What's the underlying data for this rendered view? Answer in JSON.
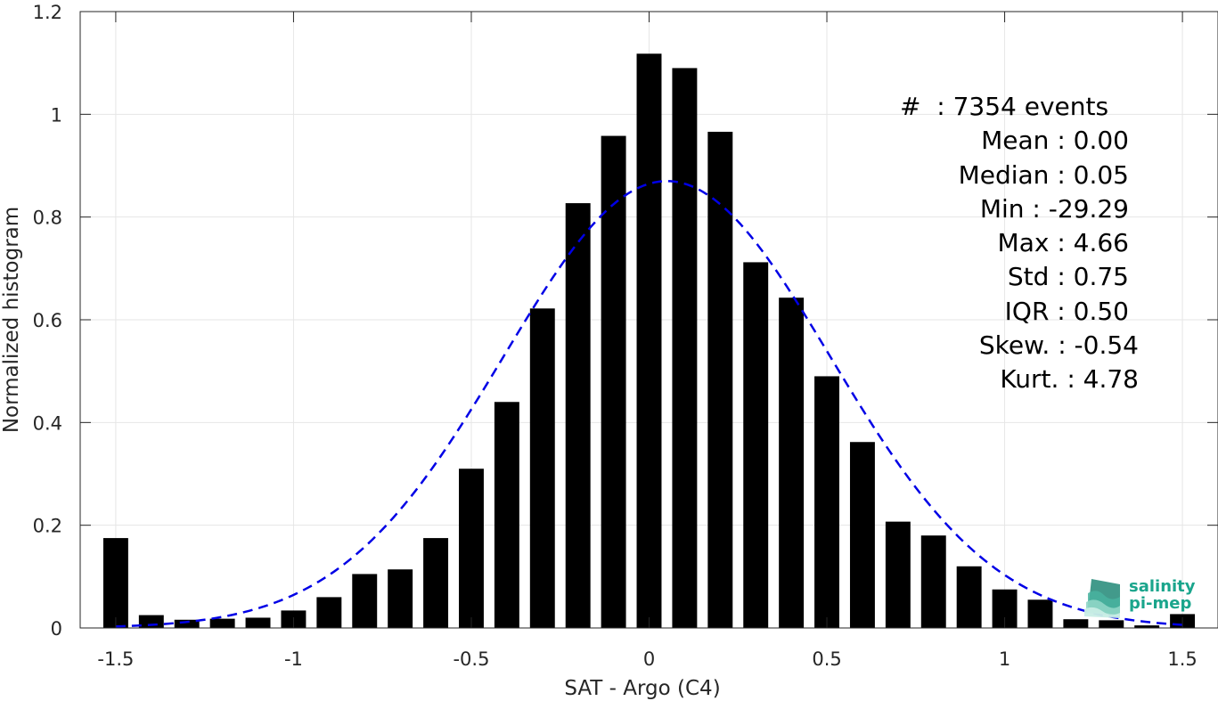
{
  "chart_data": {
    "type": "bar",
    "xlabel": "SAT - Argo (C4)",
    "ylabel": "Normalized histogram",
    "xlim": [
      -1.6,
      1.6
    ],
    "ylim": [
      0,
      1.2
    ],
    "xticks": [
      -1.5,
      -1,
      -0.5,
      0,
      0.5,
      1,
      1.5
    ],
    "xtick_labels": [
      "-1.5",
      "-1",
      "-0.5",
      "0",
      "0.5",
      "1",
      "1.5"
    ],
    "yticks": [
      0,
      0.2,
      0.4,
      0.6,
      0.8,
      1.0,
      1.2
    ],
    "ytick_labels": [
      "0",
      "0.2",
      "0.4",
      "0.6",
      "0.8",
      "1",
      "1.2"
    ],
    "grid": true,
    "bin_width": 0.1,
    "bar_color": "#000000",
    "x": [
      -1.5,
      -1.4,
      -1.3,
      -1.2,
      -1.1,
      -1.0,
      -0.9,
      -0.8,
      -0.7,
      -0.6,
      -0.5,
      -0.4,
      -0.3,
      -0.2,
      -0.1,
      0.0,
      0.1,
      0.2,
      0.3,
      0.4,
      0.5,
      0.6,
      0.7,
      0.8,
      0.9,
      1.0,
      1.1,
      1.2,
      1.3,
      1.4,
      1.5
    ],
    "values": [
      0.175,
      0.025,
      0.016,
      0.018,
      0.02,
      0.034,
      0.06,
      0.105,
      0.114,
      0.175,
      0.31,
      0.44,
      0.622,
      0.827,
      0.958,
      1.118,
      1.09,
      0.966,
      0.712,
      0.643,
      0.49,
      0.362,
      0.207,
      0.18,
      0.12,
      0.075,
      0.055,
      0.017,
      0.015,
      0.005,
      0.027
    ],
    "fit_curve": {
      "type": "gaussian",
      "mean": 0.05,
      "std": 0.46,
      "peak": 0.87,
      "x_range": [
        -1.5,
        1.5
      ],
      "color": "#0000e6",
      "style": "dashed"
    }
  },
  "stats": {
    "count": "#  : 7354 events",
    "mean": "Mean : 0.00",
    "median": "Median : 0.05",
    "min": "Min : -29.29",
    "max": "Max : 4.66",
    "std": "Std : 0.75",
    "iqr": "IQR : 0.50",
    "skew": "Skew. : -0.54",
    "kurt": "Kurt. : 4.78"
  },
  "logo": {
    "line1": "salinity",
    "line2": "pi-mep",
    "color": "#1aa58c"
  }
}
